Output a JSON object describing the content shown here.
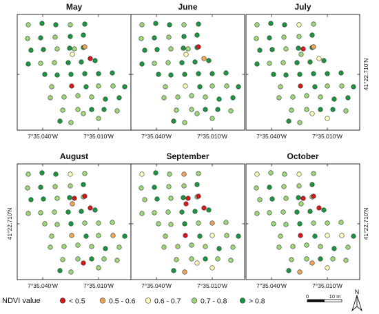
{
  "coordinates": {
    "lon_left": "7°35.040'W",
    "lon_right": "7°35.010'W",
    "lat": "41°22.710'N"
  },
  "panels": [
    {
      "month": "May"
    },
    {
      "month": "June"
    },
    {
      "month": "July"
    },
    {
      "month": "August"
    },
    {
      "month": "September"
    },
    {
      "month": "October"
    }
  ],
  "classes": [
    {
      "key": "lt05",
      "label": "< 0.5",
      "color": "#d7191c"
    },
    {
      "key": "c0506",
      "label": "0.5 - 0.6",
      "color": "#f0a65a"
    },
    {
      "key": "c0607",
      "label": "0.6 - 0.7",
      "color": "#ffffbf"
    },
    {
      "key": "c0708",
      "label": "0.7 - 0.8",
      "color": "#9ed77a"
    },
    {
      "key": "gt08",
      "label": "> 0.8",
      "color": "#1a9641"
    }
  ],
  "legend": {
    "title": "NDVI value"
  },
  "scale_bar": {
    "start": "0",
    "end": "10 m"
  },
  "north_arrow": {
    "label": "N"
  },
  "tree_classes": [
    [
      "c0708",
      "gt08",
      "gt08",
      "c0708",
      "gt08",
      "c0708",
      "gt08",
      "c0708",
      "gt08",
      "gt08",
      "gt08",
      "gt08",
      "c0708",
      "gt08",
      "gt08",
      "gt08",
      "c0708",
      "c0708",
      "gt08",
      "gt08",
      "gt08",
      "c0708",
      "c0506",
      "c0607",
      "lt05",
      "gt08",
      "gt08",
      "gt08",
      "gt08",
      "gt08",
      "gt08",
      "c0708",
      "lt05",
      "gt08",
      "c0708",
      "c0708",
      "gt08",
      "c0708",
      "c0708",
      "c0708",
      "c0708",
      "gt08",
      "gt08",
      "c0708",
      "c0708",
      "gt08",
      "gt08",
      "c0708",
      "gt08",
      "c0708",
      "c0708",
      "c0708"
    ],
    [
      "c0708",
      "gt08",
      "gt08",
      "c0708",
      "gt08",
      "c0708",
      "gt08",
      "c0708",
      "gt08",
      "gt08",
      "gt08",
      "gt08",
      "c0708",
      "gt08",
      "gt08",
      "gt08",
      "c0708",
      "c0708",
      "gt08",
      "gt08",
      "gt08",
      "c0708",
      "lt05",
      "c0607",
      "c0506",
      "gt08",
      "gt08",
      "gt08",
      "gt08",
      "gt08",
      "gt08",
      "c0708",
      "c0607",
      "gt08",
      "c0708",
      "c0708",
      "gt08",
      "c0708",
      "c0708",
      "c0708",
      "c0708",
      "gt08",
      "gt08",
      "c0708",
      "c0708",
      "gt08",
      "gt08",
      "c0708",
      "gt08",
      "c0708",
      "c0708",
      "c0708"
    ],
    [
      "c0708",
      "gt08",
      "gt08",
      "c0607",
      "c0708",
      "c0708",
      "gt08",
      "c0708",
      "c0708",
      "gt08",
      "gt08",
      "gt08",
      "c0708",
      "gt08",
      "gt08",
      "gt08",
      "c0708",
      "c0708",
      "gt08",
      "gt08",
      "gt08",
      "lt05",
      "c0506",
      "c0708",
      "c0607",
      "gt08",
      "gt08",
      "gt08",
      "gt08",
      "gt08",
      "gt08",
      "c0708",
      "lt05",
      "gt08",
      "c0708",
      "c0708",
      "gt08",
      "c0708",
      "c0708",
      "c0708",
      "c0708",
      "gt08",
      "gt08",
      "c0708",
      "c0708",
      "gt08",
      "gt08",
      "c0708",
      "gt08",
      "c0708",
      "c0607",
      "c0607"
    ],
    [
      "c0708",
      "gt08",
      "gt08",
      "c0607",
      "c0708",
      "c0708",
      "gt08",
      "c0708",
      "c0708",
      "gt08",
      "gt08",
      "gt08",
      "c0708",
      "gt08",
      "c0708",
      "c0708",
      "c0708",
      "c0708",
      "gt08",
      "gt08",
      "gt08",
      "lt05",
      "lt05",
      "c0506",
      "lt05",
      "c0708",
      "c0708",
      "gt08",
      "c0708",
      "c0708",
      "c0708",
      "c0708",
      "c0506",
      "gt08",
      "c0708",
      "c0506",
      "gt08",
      "c0708",
      "c0708",
      "c0708",
      "c0708",
      "gt08",
      "c0708",
      "c0708",
      "c0708",
      "gt08",
      "c0708",
      "c0708",
      "gt08",
      "c0708",
      "lt05",
      "c0708"
    ],
    [
      "c0607",
      "gt08",
      "c0708",
      "c0506",
      "c0708",
      "c0708",
      "gt08",
      "c0708",
      "c0708",
      "gt08",
      "c0708",
      "gt08",
      "c0708",
      "gt08",
      "c0708",
      "c0708",
      "c0708",
      "c0708",
      "gt08",
      "gt08",
      "gt08",
      "lt05",
      "lt05",
      "lt05",
      "lt05",
      "c0708",
      "c0708",
      "gt08",
      "c0708",
      "c0506",
      "c0708",
      "c0708",
      "lt05",
      "gt08",
      "c0607",
      "c0708",
      "gt08",
      "c0708",
      "c0708",
      "c0708",
      "c0708",
      "gt08",
      "c0708",
      "c0708",
      "c0708",
      "gt08",
      "c0708",
      "c0708",
      "gt08",
      "c0506",
      "c0607",
      "c0607"
    ],
    [
      "c0607",
      "c0708",
      "c0708",
      "c0607",
      "c0708",
      "c0708",
      "gt08",
      "c0708",
      "c0708",
      "gt08",
      "c0708",
      "gt08",
      "c0708",
      "gt08",
      "c0708",
      "c0708",
      "c0708",
      "c0708",
      "gt08",
      "gt08",
      "gt08",
      "lt05",
      "lt05",
      "c0708",
      "lt05",
      "c0708",
      "c0708",
      "gt08",
      "c0708",
      "c0708",
      "c0708",
      "c0708",
      "lt05",
      "gt08",
      "c0607",
      "c0607",
      "gt08",
      "c0708",
      "c0708",
      "c0708",
      "c0708",
      "gt08",
      "c0708",
      "c0708",
      "c0708",
      "gt08",
      "c0708",
      "c0708",
      "gt08",
      "c0506",
      "c0506",
      "c0607"
    ]
  ]
}
